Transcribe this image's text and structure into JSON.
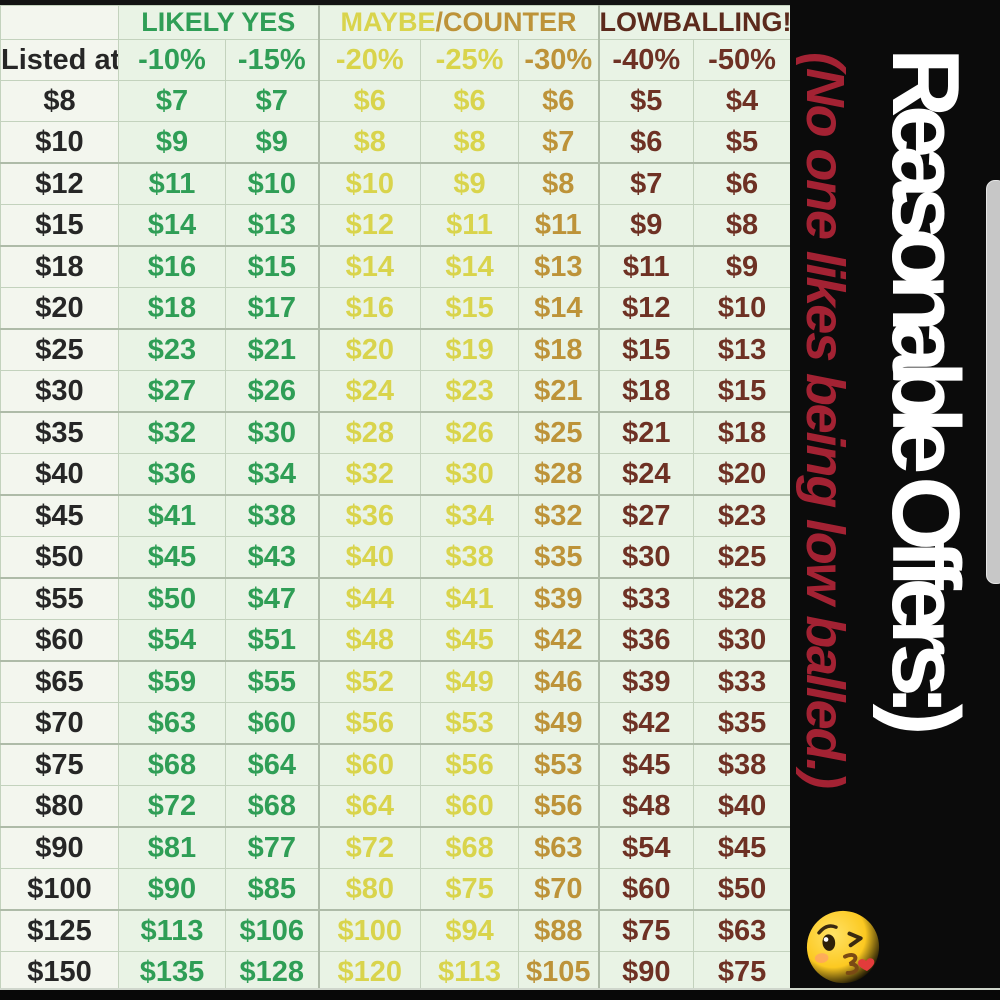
{
  "chart_data": {
    "type": "table",
    "title": "Reasonable Offers:)",
    "subtitle": "(No one likes being low balled.)",
    "corner_label": "Listed at",
    "column_groups": [
      {
        "span": 2,
        "parts": [
          {
            "text": "LIKELY YES",
            "tone": "green"
          }
        ]
      },
      {
        "span": 3,
        "parts": [
          {
            "text": "MAYBE",
            "tone": "yellow"
          },
          {
            "text": "/COUNTER",
            "tone": "gold"
          }
        ]
      },
      {
        "span": 2,
        "parts": [
          {
            "text": "LOWBALLING!",
            "tone": "maroon-dark"
          }
        ]
      }
    ],
    "columns": [
      "-10%",
      "-15%",
      "-20%",
      "-25%",
      "-30%",
      "-40%",
      "-50%"
    ],
    "column_tones": [
      "green",
      "green",
      "yellow",
      "yellow",
      "gold",
      "maroon",
      "maroon"
    ],
    "rows": [
      {
        "listed": "$8",
        "offers": [
          "$7",
          "$7",
          "$6",
          "$6",
          "$6",
          "$5",
          "$4"
        ]
      },
      {
        "listed": "$10",
        "offers": [
          "$9",
          "$9",
          "$8",
          "$8",
          "$7",
          "$6",
          "$5"
        ]
      },
      {
        "listed": "$12",
        "offers": [
          "$11",
          "$10",
          "$10",
          "$9",
          "$8",
          "$7",
          "$6"
        ]
      },
      {
        "listed": "$15",
        "offers": [
          "$14",
          "$13",
          "$12",
          "$11",
          "$11",
          "$9",
          "$8"
        ]
      },
      {
        "listed": "$18",
        "offers": [
          "$16",
          "$15",
          "$14",
          "$14",
          "$13",
          "$11",
          "$9"
        ]
      },
      {
        "listed": "$20",
        "offers": [
          "$18",
          "$17",
          "$16",
          "$15",
          "$14",
          "$12",
          "$10"
        ]
      },
      {
        "listed": "$25",
        "offers": [
          "$23",
          "$21",
          "$20",
          "$19",
          "$18",
          "$15",
          "$13"
        ]
      },
      {
        "listed": "$30",
        "offers": [
          "$27",
          "$26",
          "$24",
          "$23",
          "$21",
          "$18",
          "$15"
        ]
      },
      {
        "listed": "$35",
        "offers": [
          "$32",
          "$30",
          "$28",
          "$26",
          "$25",
          "$21",
          "$18"
        ]
      },
      {
        "listed": "$40",
        "offers": [
          "$36",
          "$34",
          "$32",
          "$30",
          "$28",
          "$24",
          "$20"
        ]
      },
      {
        "listed": "$45",
        "offers": [
          "$41",
          "$38",
          "$36",
          "$34",
          "$32",
          "$27",
          "$23"
        ]
      },
      {
        "listed": "$50",
        "offers": [
          "$45",
          "$43",
          "$40",
          "$38",
          "$35",
          "$30",
          "$25"
        ]
      },
      {
        "listed": "$55",
        "offers": [
          "$50",
          "$47",
          "$44",
          "$41",
          "$39",
          "$33",
          "$28"
        ]
      },
      {
        "listed": "$60",
        "offers": [
          "$54",
          "$51",
          "$48",
          "$45",
          "$42",
          "$36",
          "$30"
        ]
      },
      {
        "listed": "$65",
        "offers": [
          "$59",
          "$55",
          "$52",
          "$49",
          "$46",
          "$39",
          "$33"
        ]
      },
      {
        "listed": "$70",
        "offers": [
          "$63",
          "$60",
          "$56",
          "$53",
          "$49",
          "$42",
          "$35"
        ]
      },
      {
        "listed": "$75",
        "offers": [
          "$68",
          "$64",
          "$60",
          "$56",
          "$53",
          "$45",
          "$38"
        ]
      },
      {
        "listed": "$80",
        "offers": [
          "$72",
          "$68",
          "$64",
          "$60",
          "$56",
          "$48",
          "$40"
        ]
      },
      {
        "listed": "$90",
        "offers": [
          "$81",
          "$77",
          "$72",
          "$68",
          "$63",
          "$54",
          "$45"
        ]
      },
      {
        "listed": "$100",
        "offers": [
          "$90",
          "$85",
          "$80",
          "$75",
          "$70",
          "$60",
          "$50"
        ]
      },
      {
        "listed": "$125",
        "offers": [
          "$113",
          "$106",
          "$100",
          "$94",
          "$88",
          "$75",
          "$63"
        ]
      },
      {
        "listed": "$150",
        "offers": [
          "$135",
          "$128",
          "$120",
          "$113",
          "$105",
          "$90",
          "$75"
        ]
      }
    ]
  },
  "side_panel": {
    "emoji": "face-blowing-a-kiss"
  },
  "colors": {
    "green": "#2f9e56",
    "yellow": "#d9d44c",
    "gold": "#bd9339",
    "maroon": "#6e3124",
    "maroon_dark": "#5c2a1c",
    "accent_red": "#a32233",
    "table_bg": "#e9f3e5",
    "listed_col_bg": "#f3f6ee",
    "panel_bg": "#0b0b0b"
  }
}
